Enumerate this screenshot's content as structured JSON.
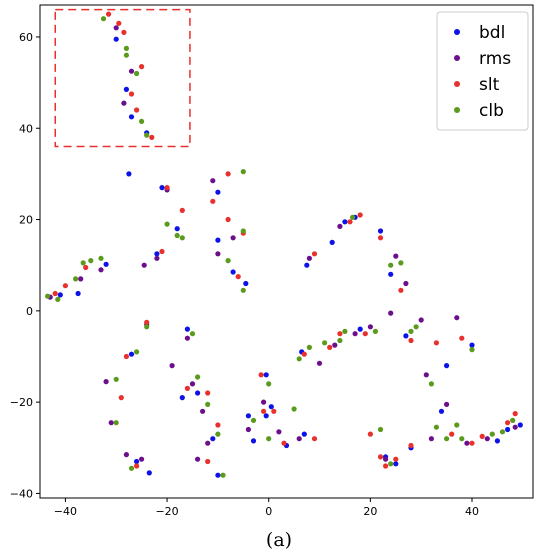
{
  "chart_data": {
    "type": "scatter",
    "caption": "(a)",
    "xlim": [
      -45,
      52
    ],
    "ylim": [
      -41,
      67
    ],
    "xticks": [
      -40,
      -20,
      0,
      20,
      40
    ],
    "yticks": [
      -40,
      -20,
      0,
      20,
      40,
      60
    ],
    "grid": false,
    "legend_position": "top-right",
    "annotation": {
      "shape": "dashed-rectangle",
      "color": "#e8302c",
      "x": [
        -42,
        -15.5
      ],
      "y": [
        36,
        66
      ]
    },
    "series": [
      {
        "name": "bdl",
        "color": "#0c12e8",
        "points": [
          [
            -41,
            3.5
          ],
          [
            -37.5,
            3.8
          ],
          [
            -32,
            10.2
          ],
          [
            -30,
            59.5
          ],
          [
            -28,
            48.5
          ],
          [
            -27,
            42.5
          ],
          [
            -27.5,
            30
          ],
          [
            -27,
            -9.5
          ],
          [
            -26,
            -33
          ],
          [
            -24,
            39
          ],
          [
            -23.5,
            -35.5
          ],
          [
            -22,
            12.5
          ],
          [
            -21,
            27
          ],
          [
            -18,
            18
          ],
          [
            -17,
            -19
          ],
          [
            -16,
            -4
          ],
          [
            -14,
            -18
          ],
          [
            -11,
            -28
          ],
          [
            -10,
            -36
          ],
          [
            -10,
            26
          ],
          [
            -10,
            15.5
          ],
          [
            -7,
            8.5
          ],
          [
            -4.5,
            6
          ],
          [
            -4,
            -23
          ],
          [
            -3,
            -28.5
          ],
          [
            -0.5,
            -14
          ],
          [
            -0.5,
            -23
          ],
          [
            0.5,
            -21
          ],
          [
            3.5,
            -29.5
          ],
          [
            6.5,
            -9
          ],
          [
            7,
            -27
          ],
          [
            7.5,
            10
          ],
          [
            12.5,
            15
          ],
          [
            15,
            19.5
          ],
          [
            17,
            20.5
          ],
          [
            18,
            -4
          ],
          [
            22,
            17.5
          ],
          [
            23,
            -32
          ],
          [
            24,
            8
          ],
          [
            25,
            -33.5
          ],
          [
            27,
            -5.5
          ],
          [
            28,
            -30
          ],
          [
            34,
            -22
          ],
          [
            35,
            -12
          ],
          [
            40,
            -7.5
          ],
          [
            45,
            -28.5
          ],
          [
            47,
            -26
          ],
          [
            49.5,
            -25
          ]
        ]
      },
      {
        "name": "rms",
        "color": "#6b0f8c",
        "points": [
          [
            -43,
            3
          ],
          [
            -37,
            7
          ],
          [
            -33,
            9
          ],
          [
            -32,
            -15.5
          ],
          [
            -31,
            -24.5
          ],
          [
            -30,
            62
          ],
          [
            -28.5,
            45.5
          ],
          [
            -28,
            -31.5
          ],
          [
            -27,
            52.5
          ],
          [
            -25,
            -32.5
          ],
          [
            -24.5,
            10
          ],
          [
            -24,
            -3
          ],
          [
            -22,
            11.5
          ],
          [
            -20,
            26.5
          ],
          [
            -19,
            -12
          ],
          [
            -16,
            -6
          ],
          [
            -15,
            -16
          ],
          [
            -14,
            -32.5
          ],
          [
            -13,
            -22
          ],
          [
            -12,
            -29
          ],
          [
            -11,
            28.5
          ],
          [
            -10,
            12.5
          ],
          [
            -7,
            16
          ],
          [
            -4,
            -26
          ],
          [
            -1,
            -20
          ],
          [
            2,
            -26.5
          ],
          [
            6,
            -28
          ],
          [
            8,
            11.5
          ],
          [
            10,
            -11.5
          ],
          [
            13,
            -7.5
          ],
          [
            14,
            18.5
          ],
          [
            17,
            -5
          ],
          [
            20,
            -3.5
          ],
          [
            23,
            -32.5
          ],
          [
            24,
            -0.5
          ],
          [
            25,
            12
          ],
          [
            27,
            6
          ],
          [
            30,
            -2
          ],
          [
            31,
            -14
          ],
          [
            32,
            -28
          ],
          [
            35,
            -20.5
          ],
          [
            37,
            -1.5
          ],
          [
            39,
            -29
          ],
          [
            43,
            -28
          ],
          [
            48.5,
            -25.5
          ]
        ]
      },
      {
        "name": "slt",
        "color": "#e8302c",
        "points": [
          [
            -42,
            3.8
          ],
          [
            -40,
            5.5
          ],
          [
            -36,
            9.5
          ],
          [
            -31.5,
            65
          ],
          [
            -29.5,
            63
          ],
          [
            -28.5,
            61
          ],
          [
            -27,
            47.5
          ],
          [
            -26,
            44
          ],
          [
            -25,
            53.5
          ],
          [
            -23,
            38
          ],
          [
            -29,
            -19
          ],
          [
            -28,
            -10
          ],
          [
            -26,
            -34
          ],
          [
            -24,
            -2.5
          ],
          [
            -21,
            13
          ],
          [
            -20,
            27
          ],
          [
            -17,
            22
          ],
          [
            -16,
            -17
          ],
          [
            -12,
            -18
          ],
          [
            -12,
            -33
          ],
          [
            -11,
            24
          ],
          [
            -10,
            -25
          ],
          [
            -8,
            30
          ],
          [
            -8,
            20
          ],
          [
            -6,
            7.5
          ],
          [
            -5,
            17
          ],
          [
            -1.5,
            -14
          ],
          [
            -1,
            -22
          ],
          [
            1,
            -22
          ],
          [
            3,
            -29
          ],
          [
            7,
            -9.5
          ],
          [
            9,
            -28
          ],
          [
            9,
            12.5
          ],
          [
            12,
            -8
          ],
          [
            14,
            -5
          ],
          [
            16,
            19.5
          ],
          [
            18,
            21
          ],
          [
            19,
            -5
          ],
          [
            20,
            -27
          ],
          [
            22,
            16
          ],
          [
            22,
            -32
          ],
          [
            23,
            -34
          ],
          [
            25,
            -32.5
          ],
          [
            26,
            4.5
          ],
          [
            28,
            -6.5
          ],
          [
            28,
            -29.5
          ],
          [
            33,
            -7
          ],
          [
            36,
            -27
          ],
          [
            38,
            -6
          ],
          [
            40,
            -29
          ],
          [
            42,
            -27.5
          ],
          [
            47,
            -24.5
          ],
          [
            48.5,
            -22.5
          ]
        ]
      },
      {
        "name": "clb",
        "color": "#5a9a1c",
        "points": [
          [
            -43.5,
            3.2
          ],
          [
            -41.5,
            2.5
          ],
          [
            -38,
            7
          ],
          [
            -36.5,
            10.5
          ],
          [
            -35,
            11
          ],
          [
            -33,
            11.5
          ],
          [
            -32.5,
            64
          ],
          [
            -28,
            56
          ],
          [
            -28,
            57.5
          ],
          [
            -26,
            52
          ],
          [
            -25,
            41.5
          ],
          [
            -24,
            38.5
          ],
          [
            -30,
            -15
          ],
          [
            -30,
            -24.5
          ],
          [
            -27,
            -34.5
          ],
          [
            -26,
            -9
          ],
          [
            -24,
            -3.5
          ],
          [
            -20,
            19
          ],
          [
            -18,
            16.5
          ],
          [
            -17,
            16
          ],
          [
            -15,
            -5
          ],
          [
            -14,
            -14.5
          ],
          [
            -12,
            -20.5
          ],
          [
            -10,
            -27
          ],
          [
            -9,
            -36
          ],
          [
            -8,
            11
          ],
          [
            -5,
            30.5
          ],
          [
            -5,
            17.5
          ],
          [
            -5,
            4.5
          ],
          [
            -3,
            -24
          ],
          [
            0,
            -16
          ],
          [
            0,
            -28
          ],
          [
            5,
            -21.5
          ],
          [
            6,
            -10.5
          ],
          [
            8,
            -8
          ],
          [
            11,
            -7
          ],
          [
            14,
            -6.5
          ],
          [
            15,
            -4.5
          ],
          [
            16.5,
            20.5
          ],
          [
            21,
            -4.5
          ],
          [
            22,
            -26
          ],
          [
            24,
            10
          ],
          [
            24,
            -33.5
          ],
          [
            26,
            10.5
          ],
          [
            28,
            -4.5
          ],
          [
            29,
            -3.5
          ],
          [
            32,
            -16
          ],
          [
            33,
            -25.5
          ],
          [
            35,
            -28
          ],
          [
            37,
            -25
          ],
          [
            38,
            -28
          ],
          [
            40,
            -8.5
          ],
          [
            44,
            -27
          ],
          [
            46,
            -26.5
          ],
          [
            48,
            -24
          ]
        ]
      }
    ]
  }
}
